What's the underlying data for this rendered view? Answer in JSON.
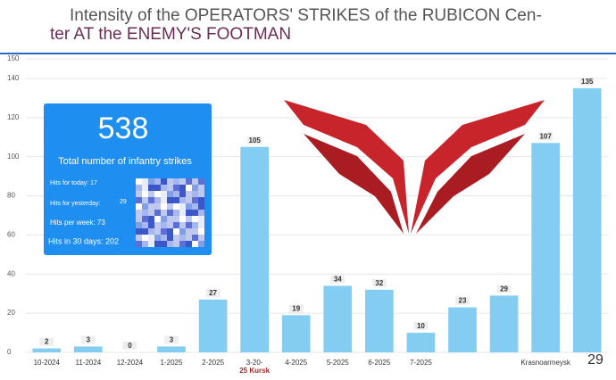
{
  "chart_data": {
    "type": "bar",
    "title": [
      "Intensity of the OPERATORS' STRIKES of the RUBICON Cen-",
      "ter AT the ENEMY'S FOOTMAN"
    ],
    "categories": [
      "10-2024",
      "11-2024",
      "12-2024",
      "1-2025",
      "2-2025",
      "3-20-",
      "4-2025",
      "5-2025",
      "6-2025",
      "7-2025",
      null,
      null,
      "Krasnoarmeysk",
      null
    ],
    "values": [
      2,
      3,
      0,
      3,
      27,
      105,
      19,
      34,
      32,
      10,
      23,
      29,
      107,
      135
    ],
    "color": "#83ccf2",
    "ylim": [
      0,
      150
    ],
    "yticks": [
      0,
      20,
      40,
      60,
      80,
      100,
      120,
      140,
      150
    ],
    "grid": true,
    "annotation": "25 Kursk",
    "watermark": "29"
  },
  "infobox": {
    "total": "538",
    "total_label": "Total number of infantry strikes",
    "today": "Hits for today: 17",
    "yesterday": "Hits for yesterday:",
    "yesterday_value": "29",
    "week": "Hits per week: 73",
    "month": "Hits in 30 days: 202"
  }
}
